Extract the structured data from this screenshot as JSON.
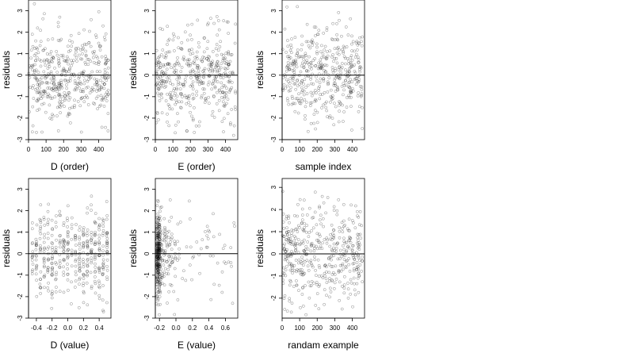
{
  "chart_data": [
    {
      "type": "scatter",
      "id": "p1",
      "xlabel": "D (order)",
      "ylabel": "residuals",
      "xlim": [
        0,
        470
      ],
      "ylim": [
        -3,
        3.5
      ],
      "xticks": [
        0,
        100,
        200,
        300,
        400
      ],
      "yticks": [
        -3,
        -2,
        -1,
        0,
        1,
        2,
        3
      ],
      "hline": 0,
      "n": 450,
      "seed": 11,
      "shape": "uniform"
    },
    {
      "type": "scatter",
      "id": "p2",
      "xlabel": "E (order)",
      "ylabel": "residuals",
      "xlim": [
        0,
        470
      ],
      "ylim": [
        -3,
        3.5
      ],
      "xticks": [
        0,
        100,
        200,
        300,
        400
      ],
      "yticks": [
        -3,
        -2,
        -1,
        0,
        1,
        2,
        3
      ],
      "hline": 0,
      "n": 450,
      "seed": 23,
      "shape": "uniform"
    },
    {
      "type": "scatter",
      "id": "p3",
      "xlabel": "sample index",
      "ylabel": "residuals",
      "xlim": [
        0,
        470
      ],
      "ylim": [
        -3,
        3.5
      ],
      "xticks": [
        0,
        100,
        200,
        300,
        400
      ],
      "yticks": [
        -3,
        -2,
        -1,
        0,
        1,
        2,
        3
      ],
      "hline": 0,
      "n": 450,
      "seed": 37,
      "shape": "uniform"
    },
    {
      "type": "scatter",
      "id": "p4",
      "xlabel": "D (value)",
      "ylabel": "residuals",
      "xlim": [
        -0.5,
        0.55
      ],
      "ylim": [
        -3,
        3.5
      ],
      "xticks": [
        -0.4,
        -0.2,
        0.0,
        0.2,
        0.4
      ],
      "xticklabels": [
        "-0.4",
        "-0.2",
        "0.0",
        "0.2",
        "0.4"
      ],
      "yticks": [
        -3,
        -2,
        -1,
        0,
        1,
        2,
        3
      ],
      "hline": 0,
      "n": 420,
      "seed": 41,
      "shape": "columns",
      "columns": [
        -0.45,
        -0.4,
        -0.35,
        -0.3,
        -0.25,
        -0.2,
        -0.15,
        -0.1,
        -0.05,
        0.0,
        0.05,
        0.1,
        0.15,
        0.2,
        0.25,
        0.3,
        0.35,
        0.4,
        0.45,
        0.5
      ]
    },
    {
      "type": "scatter",
      "id": "p5",
      "xlabel": "E (value)",
      "ylabel": "residuals",
      "xlim": [
        -0.25,
        0.75
      ],
      "ylim": [
        -3,
        3.5
      ],
      "xticks": [
        -0.2,
        0.0,
        0.2,
        0.4,
        0.6
      ],
      "xticklabels": [
        "-0.2",
        "0.0",
        "0.2",
        "0.4",
        "0.6"
      ],
      "yticks": [
        -3,
        -2,
        -1,
        0,
        1,
        2,
        3
      ],
      "hline": 0,
      "n": 420,
      "seed": 53,
      "shape": "skewed"
    },
    {
      "type": "scatter",
      "id": "p6",
      "xlabel": "randam example",
      "ylabel": "residuals",
      "xlim": [
        0,
        470
      ],
      "ylim": [
        -2.9,
        3.4
      ],
      "xticks": [
        0,
        100,
        200,
        300,
        400
      ],
      "yticks": [
        -2,
        -1,
        0,
        1,
        2,
        3
      ],
      "hline": 0,
      "n": 450,
      "seed": 67,
      "shape": "uniform"
    }
  ]
}
